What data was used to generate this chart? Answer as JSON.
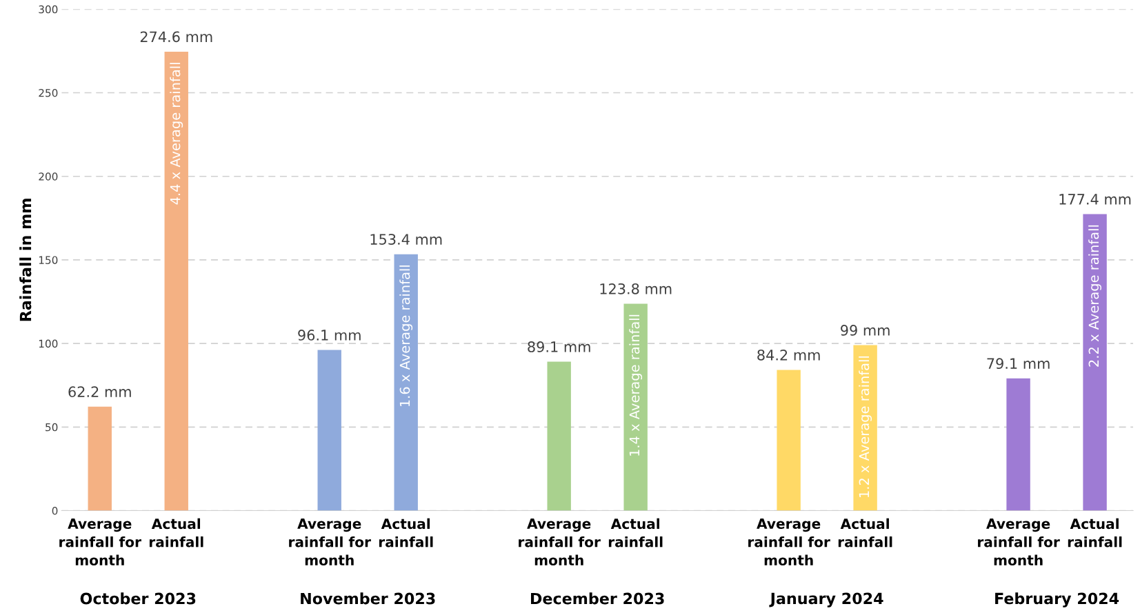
{
  "chart_data": {
    "type": "bar",
    "ylabel": "Rainfall in mm",
    "categories": [
      "Average\nrainfall for\nmonth",
      "Actual\nrainfall",
      null,
      "Average\nrainfall for\nmonth",
      "Actual\nrainfall",
      null,
      "Average\nrainfall for\nmonth",
      "Actual\nrainfall",
      null,
      "Average\nrainfall for\nmonth",
      "Actual\nrainfall",
      null,
      "Average\nrainfall for\nmonth",
      "Actual\nrainfall"
    ],
    "values": [
      62.2,
      274.6,
      null,
      96.1,
      153.4,
      null,
      89.1,
      123.8,
      null,
      84.2,
      99,
      null,
      79.1,
      177.4
    ],
    "colors": [
      "#f4b183",
      "#f4b183",
      null,
      "#8faadc",
      "#8faadc",
      null,
      "#a9d18e",
      "#a9d18e",
      null,
      "#ffd966",
      "#ffd966",
      null,
      "#9e7bd4",
      "#9e7bd4"
    ],
    "value_labels": [
      "62.2 mm",
      "274.6 mm",
      null,
      "96.1 mm",
      "153.4 mm",
      null,
      "89.1 mm",
      "123.8 mm",
      null,
      "84.2 mm",
      "99 mm",
      null,
      "79.1 mm",
      "177.4 mm"
    ],
    "annotations": [
      "4.4 x Average rainfall",
      "October 2023",
      "1.6 x Average rainfall",
      "November 2023",
      "1.4 x Average rainfall",
      "December 2023",
      "1.2 x Average rainfall",
      "January 2024",
      "2.2 x Average rainfall",
      "February 2024"
    ],
    "ylim": [
      0,
      300
    ],
    "yticks": [
      0,
      50,
      100,
      150,
      200,
      250,
      300
    ],
    "grid": "y",
    "legend": false
  }
}
